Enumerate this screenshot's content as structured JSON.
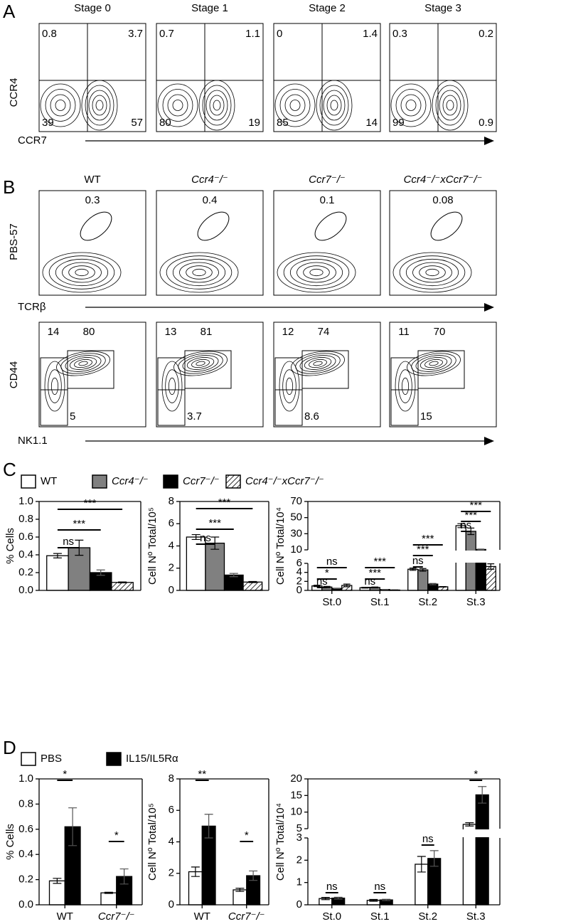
{
  "panel_a": {
    "label": "A",
    "titles": [
      "Stage 0",
      "Stage 1",
      "Stage 2",
      "Stage 3"
    ],
    "quadrants": [
      [
        0.8,
        3.7,
        39,
        57
      ],
      [
        0.7,
        1.1,
        80,
        19
      ],
      [
        0,
        1.4,
        85,
        14
      ],
      [
        0.3,
        0.2,
        99,
        0.9
      ]
    ],
    "y_label": "CCR4",
    "x_label": "CCR7"
  },
  "panel_b": {
    "label": "B",
    "titles": [
      "WT",
      "Ccr4⁻/⁻",
      "Ccr7⁻/⁻",
      "Ccr4⁻/⁻xCcr7⁻/⁻"
    ],
    "gates_top": [
      0.3,
      0.4,
      0.1,
      0.08
    ],
    "gates_bottom": [
      [
        14,
        80,
        5
      ],
      [
        13,
        81,
        3.7
      ],
      [
        12,
        74,
        8.6
      ],
      [
        11,
        70,
        15
      ]
    ],
    "y_label_top": "PBS-57",
    "x_label_top": "TCRβ",
    "y_label_bottom": "CD44",
    "x_label_bottom": "NK1.1"
  },
  "panel_c_label": "C",
  "panel_d_label": "D",
  "chart_data": [
    {
      "type": "bar",
      "y_label": "% Cells",
      "categories": [
        null
      ],
      "series": [
        {
          "name": "WT",
          "color": "#ffffff",
          "values": [
            0.39
          ],
          "errors": [
            0.025
          ]
        },
        {
          "name": "Ccr4⁻/⁻",
          "color": "#808080",
          "values": [
            0.48
          ],
          "errors": [
            0.085
          ]
        },
        {
          "name": "Ccr7⁻/⁻",
          "color": "#000000",
          "values": [
            0.2
          ],
          "errors": [
            0.03
          ]
        },
        {
          "name": "Ccr4⁻/⁻xCcr7⁻/⁻",
          "color": "#ffffff",
          "pattern": "hatch",
          "values": [
            0.09
          ],
          "errors": [
            0.005
          ]
        }
      ],
      "ylim": [
        0,
        1
      ],
      "yticks": [
        {
          "value": 0,
          "label": "0.0"
        },
        0.2,
        0.4,
        0.6,
        0.8,
        {
          "value": 1,
          "label": "1.0"
        }
      ],
      "annotations": [
        "ns",
        "***",
        "***"
      ]
    },
    {
      "type": "bar",
      "y_label": "Cell Nº Total/10⁵",
      "categories": [
        null
      ],
      "series": [
        {
          "color": "#ffffff",
          "values": [
            4.8
          ],
          "errors": [
            0.22
          ]
        },
        {
          "color": "#808080",
          "values": [
            4.25
          ],
          "errors": [
            0.55
          ]
        },
        {
          "color": "#000000",
          "values": [
            1.38
          ],
          "errors": [
            0.15
          ]
        },
        {
          "color": "#ffffff",
          "pattern": "hatch",
          "values": [
            0.75
          ],
          "errors": [
            0.05
          ]
        }
      ],
      "ylim": [
        0,
        8
      ],
      "yticks": [
        0,
        2,
        4,
        6,
        8
      ],
      "annotations": [
        "ns",
        "***",
        "***"
      ]
    },
    {
      "type": "bar",
      "y_label": "Cell Nº Total/10⁴",
      "categories": [
        "St.0",
        "St.1",
        "St.2",
        "St.3"
      ],
      "series": [
        {
          "color": "#ffffff",
          "values": [
            1.0,
            0.6,
            4.7,
            40
          ],
          "errors": [
            0.15,
            0.1,
            0.25,
            2.5
          ]
        },
        {
          "color": "#808080",
          "values": [
            0.75,
            0.65,
            4.55,
            33
          ],
          "errors": [
            0.15,
            0.1,
            0.3,
            4
          ]
        },
        {
          "color": "#000000",
          "values": [
            0.45,
            0.2,
            1.4,
            10.5
          ],
          "errors": [
            0.05,
            0.03,
            0.15,
            0.5
          ]
        },
        {
          "color": "#ffffff",
          "pattern": "hatch",
          "values": [
            1.1,
            0.08,
            0.8,
            5.3
          ],
          "errors": [
            0.3,
            0.03,
            0.05,
            0.6
          ]
        }
      ],
      "ylim": [
        0,
        70
      ],
      "ybreak": [
        6,
        10
      ],
      "yticks": [
        0,
        2,
        4,
        6,
        10,
        30,
        50,
        70
      ],
      "annotations": [
        "ns",
        "*",
        "ns",
        "***",
        "***",
        "ns",
        "***",
        "***",
        "ns",
        "***",
        "***",
        "ns"
      ]
    },
    {
      "type": "bar",
      "y_label": "% Cells",
      "categories": [
        "WT",
        "Ccr7⁻/⁻"
      ],
      "series": [
        {
          "name": "PBS",
          "color": "#ffffff",
          "values": [
            0.19,
            0.095
          ],
          "errors": [
            0.02,
            0.005
          ]
        },
        {
          "name": "IL15/IL5Rα",
          "color": "#000000",
          "values": [
            0.62,
            0.225
          ],
          "errors": [
            0.15,
            0.06
          ]
        }
      ],
      "ylim": [
        0,
        1
      ],
      "yticks": [
        {
          "value": 0,
          "label": "0.0"
        },
        0.2,
        0.4,
        0.6,
        0.8,
        {
          "value": 1,
          "label": "1.0"
        }
      ],
      "annotations": [
        "*",
        "*"
      ]
    },
    {
      "type": "bar",
      "y_label": "Cell Nº Total/10⁵",
      "categories": [
        "WT",
        "Ccr7⁻/⁻"
      ],
      "series": [
        {
          "color": "#ffffff",
          "values": [
            2.1,
            0.95
          ],
          "errors": [
            0.3,
            0.1
          ]
        },
        {
          "color": "#000000",
          "values": [
            5.0,
            1.85
          ],
          "errors": [
            0.75,
            0.3
          ]
        }
      ],
      "ylim": [
        0,
        8
      ],
      "yticks": [
        0,
        2,
        4,
        6,
        8
      ],
      "annotations": [
        "**",
        "*"
      ]
    },
    {
      "type": "bar",
      "y_label": "Cell Nº Total/10⁴",
      "categories": [
        "St.0",
        "St.1",
        "St.2",
        "St.3"
      ],
      "series": [
        {
          "color": "#ffffff",
          "values": [
            0.28,
            0.2,
            1.82,
            6.3
          ],
          "errors": [
            0.05,
            0.04,
            0.35,
            0.5
          ]
        },
        {
          "color": "#000000",
          "values": [
            0.3,
            0.22,
            2.08,
            15.2
          ],
          "errors": [
            0.04,
            0.03,
            0.35,
            2.5
          ]
        }
      ],
      "ylim": [
        0,
        20
      ],
      "ybreak": [
        3,
        5
      ],
      "yticks": [
        0,
        1,
        2,
        3,
        5,
        10,
        15,
        20
      ],
      "annotations": [
        "ns",
        "ns",
        "ns",
        "*"
      ]
    }
  ]
}
